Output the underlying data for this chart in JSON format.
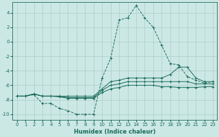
{
  "xlabel": "Humidex (Indice chaleur)",
  "bg_color": "#cce8e4",
  "grid_color": "#aaccc8",
  "line_color": "#1a6b5a",
  "xlim": [
    -0.5,
    23.5
  ],
  "ylim": [
    -10.8,
    5.5
  ],
  "yticks": [
    -10,
    -8,
    -6,
    -4,
    -2,
    0,
    2,
    4
  ],
  "xticks": [
    0,
    1,
    2,
    3,
    4,
    5,
    6,
    7,
    8,
    9,
    10,
    11,
    12,
    13,
    14,
    15,
    16,
    17,
    18,
    19,
    20,
    21,
    22,
    23
  ],
  "series": [
    {
      "x": [
        0,
        1,
        2,
        3,
        4,
        5,
        6,
        7,
        8,
        9,
        10,
        11,
        12,
        13,
        14,
        15,
        16,
        17,
        18,
        19,
        20,
        21,
        22,
        23
      ],
      "y": [
        -7.5,
        -7.5,
        -7.3,
        -8.5,
        -8.5,
        -9.2,
        -9.5,
        -10.0,
        -10.0,
        -10.0,
        -5.0,
        -2.3,
        3.0,
        3.3,
        5.0,
        3.3,
        2.0,
        -0.5,
        -3.0,
        -3.2,
        -4.8,
        -5.3,
        -5.7,
        -5.5
      ],
      "linestyle": "--"
    },
    {
      "x": [
        0,
        1,
        2,
        3,
        4,
        5,
        6,
        7,
        8,
        9,
        10,
        11,
        12,
        13,
        14,
        15,
        16,
        17,
        18,
        19,
        20,
        21,
        22,
        23
      ],
      "y": [
        -7.5,
        -7.5,
        -7.2,
        -7.5,
        -7.5,
        -7.5,
        -7.5,
        -7.5,
        -7.5,
        -7.5,
        -6.5,
        -5.5,
        -5.3,
        -5.0,
        -5.0,
        -5.0,
        -5.0,
        -5.0,
        -4.5,
        -3.5,
        -3.5,
        -5.0,
        -5.5,
        -5.5
      ],
      "linestyle": "-"
    },
    {
      "x": [
        0,
        1,
        2,
        3,
        4,
        5,
        6,
        7,
        8,
        9,
        10,
        11,
        12,
        13,
        14,
        15,
        16,
        17,
        18,
        19,
        20,
        21,
        22,
        23
      ],
      "y": [
        -7.5,
        -7.5,
        -7.2,
        -7.5,
        -7.5,
        -7.5,
        -7.7,
        -7.7,
        -7.7,
        -7.7,
        -6.7,
        -6.0,
        -5.8,
        -5.5,
        -5.5,
        -5.5,
        -5.5,
        -5.5,
        -5.5,
        -5.5,
        -5.5,
        -5.8,
        -5.8,
        -5.8
      ],
      "linestyle": "-"
    },
    {
      "x": [
        0,
        1,
        2,
        3,
        4,
        5,
        6,
        7,
        8,
        9,
        10,
        11,
        12,
        13,
        14,
        15,
        16,
        17,
        18,
        19,
        20,
        21,
        22,
        23
      ],
      "y": [
        -7.5,
        -7.5,
        -7.2,
        -7.5,
        -7.5,
        -7.6,
        -7.8,
        -7.8,
        -7.8,
        -7.8,
        -7.0,
        -6.5,
        -6.3,
        -6.0,
        -6.0,
        -6.0,
        -6.0,
        -6.2,
        -6.2,
        -6.3,
        -6.3,
        -6.3,
        -6.2,
        -6.2
      ],
      "linestyle": "-"
    }
  ]
}
